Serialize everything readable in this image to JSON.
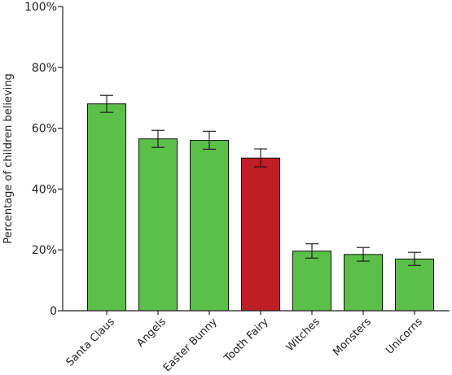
{
  "chart_data": {
    "type": "bar",
    "title": "",
    "xlabel": "",
    "ylabel": "Percentage of children believing",
    "ylim": [
      0,
      100
    ],
    "yticks": [
      "0",
      "20%",
      "40%",
      "60%",
      "80%",
      "100%"
    ],
    "grid": false,
    "categories": [
      "Santa Claus",
      "Angels",
      "Easter Bunny",
      "Tooth Fairy",
      "Witches",
      "Monsters",
      "Unicorns"
    ],
    "values": [
      68,
      56.5,
      56,
      50.2,
      19.6,
      18.5,
      17
    ],
    "error_low": [
      65.2,
      53.7,
      53.1,
      47.3,
      17.3,
      16.3,
      14.9
    ],
    "error_high": [
      70.8,
      59.3,
      59,
      53.2,
      22,
      20.8,
      19.2
    ],
    "colors": [
      "#5cbf4a",
      "#5cbf4a",
      "#5cbf4a",
      "#bf1e24",
      "#5cbf4a",
      "#5cbf4a",
      "#5cbf4a"
    ],
    "edge_color": "#111111"
  }
}
